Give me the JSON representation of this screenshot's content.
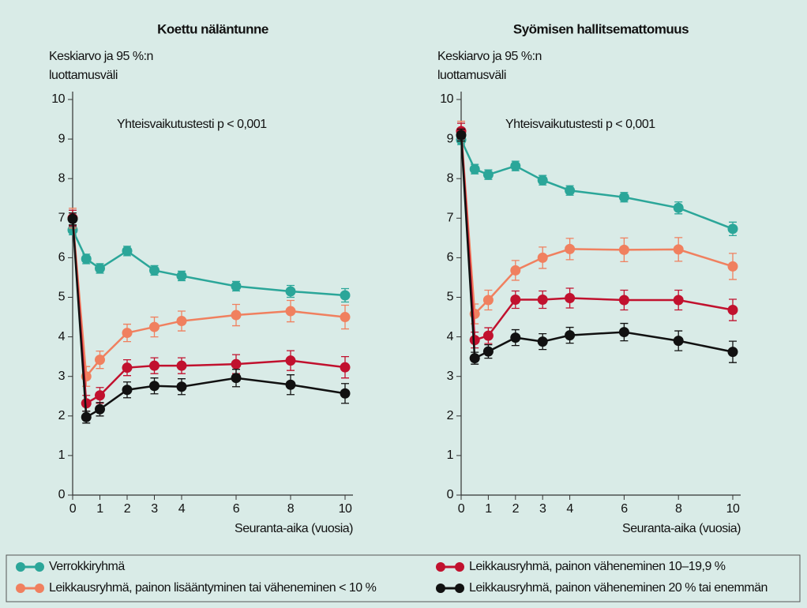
{
  "chart_data": [
    {
      "type": "line",
      "title": "Koettu näläntunne",
      "ylabel": [
        "Keskiarvo ja 95 %:n",
        "luottamusväli"
      ],
      "xlabel": "Seuranta-aika (vuosia)",
      "annotation": "Yhteisvaikutustesti p < 0,001",
      "x": [
        0,
        0.5,
        1,
        2,
        3,
        4,
        6,
        8,
        10
      ],
      "xlim": [
        0,
        10
      ],
      "xticks": [
        0,
        1,
        2,
        3,
        4,
        6,
        8,
        10
      ],
      "ylim": [
        0,
        10
      ],
      "yticks": [
        0,
        1,
        2,
        3,
        4,
        5,
        6,
        7,
        8,
        9,
        10
      ],
      "series": [
        {
          "name": "Verrokkiryhmä",
          "color": "#2ba699",
          "values": [
            6.7,
            5.97,
            5.73,
            6.17,
            5.68,
            5.54,
            5.28,
            5.15,
            5.05
          ],
          "errors": [
            0.12,
            0.12,
            0.12,
            0.12,
            0.12,
            0.12,
            0.12,
            0.15,
            0.17
          ]
        },
        {
          "name": "Leikkausryhmä, painon lisääntyminen tai väheneminen < 10 %",
          "color": "#f0805f",
          "values": [
            7.0,
            3.0,
            3.42,
            4.1,
            4.25,
            4.4,
            4.55,
            4.65,
            4.5
          ],
          "errors": [
            0.25,
            0.25,
            0.22,
            0.22,
            0.25,
            0.25,
            0.27,
            0.27,
            0.3
          ]
        },
        {
          "name": "Leikkausryhmä, painon väheneminen 10–19,9 %",
          "color": "#c1112e",
          "values": [
            7.0,
            2.32,
            2.52,
            3.22,
            3.27,
            3.27,
            3.31,
            3.4,
            3.23
          ],
          "errors": [
            0.2,
            0.2,
            0.2,
            0.2,
            0.2,
            0.2,
            0.24,
            0.25,
            0.27
          ]
        },
        {
          "name": "Leikkausryhmä, painon väheneminen 20 % tai enemmän",
          "color": "#111111",
          "values": [
            6.98,
            1.97,
            2.17,
            2.66,
            2.76,
            2.74,
            2.96,
            2.79,
            2.57
          ],
          "errors": [
            0.15,
            0.15,
            0.17,
            0.2,
            0.2,
            0.2,
            0.22,
            0.25,
            0.25
          ]
        }
      ]
    },
    {
      "type": "line",
      "title": "Syömisen hallitsemattomuus",
      "ylabel": [
        "Keskiarvo ja 95 %:n",
        "luottamusväli"
      ],
      "xlabel": "Seuranta-aika (vuosia)",
      "annotation": "Yhteisvaikutustesti p < 0,001",
      "x": [
        0,
        0.5,
        1,
        2,
        3,
        4,
        6,
        8,
        10
      ],
      "xlim": [
        0,
        10
      ],
      "xticks": [
        0,
        1,
        2,
        3,
        4,
        6,
        8,
        10
      ],
      "ylim": [
        0,
        10
      ],
      "yticks": [
        0,
        1,
        2,
        3,
        4,
        5,
        6,
        7,
        8,
        9,
        10
      ],
      "series": [
        {
          "color": "#2ba699",
          "values": [
            8.98,
            8.24,
            8.1,
            8.32,
            7.96,
            7.7,
            7.53,
            7.26,
            6.73
          ],
          "errors": [
            0.12,
            0.12,
            0.12,
            0.12,
            0.12,
            0.12,
            0.12,
            0.15,
            0.17
          ]
        },
        {
          "color": "#f0805f",
          "values": [
            9.2,
            4.58,
            4.93,
            5.68,
            6.0,
            6.22,
            6.2,
            6.21,
            5.78
          ],
          "errors": [
            0.25,
            0.25,
            0.25,
            0.25,
            0.27,
            0.27,
            0.3,
            0.3,
            0.33
          ]
        },
        {
          "color": "#c1112e",
          "values": [
            9.2,
            3.92,
            4.03,
            4.94,
            4.94,
            4.98,
            4.93,
            4.93,
            4.68
          ],
          "errors": [
            0.2,
            0.2,
            0.2,
            0.22,
            0.22,
            0.25,
            0.25,
            0.25,
            0.27
          ]
        },
        {
          "color": "#111111",
          "values": [
            9.1,
            3.46,
            3.63,
            3.98,
            3.88,
            4.04,
            4.12,
            3.9,
            3.62
          ],
          "errors": [
            0.15,
            0.15,
            0.17,
            0.2,
            0.2,
            0.2,
            0.22,
            0.25,
            0.27
          ]
        }
      ]
    }
  ]
}
